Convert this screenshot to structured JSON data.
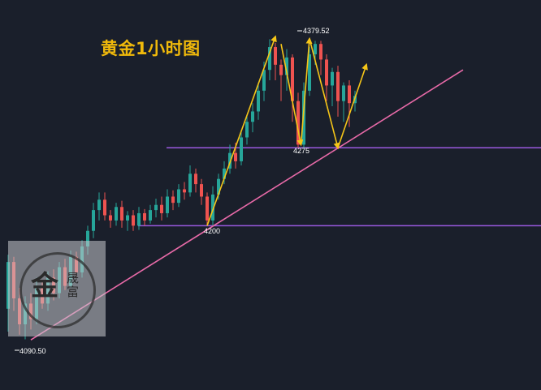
{
  "title": "黄金1小时图",
  "colors": {
    "background": "#1a1f2b",
    "bull": "#26a69a",
    "bear": "#ef5350",
    "arrow": "#f5c518",
    "trendline": "#e86aa8",
    "support": "#9a5ae0",
    "title": "#f0b90b"
  },
  "watermark": {
    "text_main": "金",
    "text_side": "晟富"
  },
  "chart_data": {
    "type": "candlestick",
    "title": "黄金1小时图",
    "ylim": [
      4080,
      4390
    ],
    "price_labels": {
      "high": "4379.52",
      "low": "4090.50",
      "support_upper": "4275",
      "support_lower": "4200"
    },
    "support_levels": [
      4275,
      4200
    ],
    "candles": [
      [
        4120,
        4165,
        4098,
        4172
      ],
      [
        4165,
        4130,
        4118,
        4170
      ],
      [
        4130,
        4105,
        4095,
        4140
      ],
      [
        4105,
        4125,
        4090.5,
        4132
      ],
      [
        4125,
        4110,
        4100,
        4135
      ],
      [
        4110,
        4140,
        4105,
        4150
      ],
      [
        4140,
        4125,
        4120,
        4148
      ],
      [
        4125,
        4150,
        4118,
        4156
      ],
      [
        4150,
        4135,
        4128,
        4158
      ],
      [
        4135,
        4160,
        4130,
        4165
      ],
      [
        4160,
        4142,
        4138,
        4168
      ],
      [
        4142,
        4170,
        4140,
        4176
      ],
      [
        4170,
        4155,
        4150,
        4175
      ],
      [
        4155,
        4180,
        4150,
        4186
      ],
      [
        4180,
        4195,
        4172,
        4200
      ],
      [
        4195,
        4215,
        4188,
        4222
      ],
      [
        4215,
        4225,
        4205,
        4232
      ],
      [
        4225,
        4210,
        4205,
        4232
      ],
      [
        4210,
        4205,
        4198,
        4215
      ],
      [
        4205,
        4218,
        4200,
        4222
      ],
      [
        4218,
        4205,
        4198,
        4224
      ],
      [
        4205,
        4210,
        4195,
        4214
      ],
      [
        4210,
        4200,
        4195,
        4215
      ],
      [
        4200,
        4212,
        4196,
        4218
      ],
      [
        4212,
        4205,
        4200,
        4216
      ],
      [
        4205,
        4215,
        4202,
        4220
      ],
      [
        4215,
        4220,
        4208,
        4226
      ],
      [
        4220,
        4212,
        4205,
        4228
      ],
      [
        4212,
        4228,
        4208,
        4235
      ],
      [
        4228,
        4222,
        4215,
        4234
      ],
      [
        4222,
        4235,
        4218,
        4240
      ],
      [
        4235,
        4232,
        4225,
        4242
      ],
      [
        4232,
        4250,
        4228,
        4258
      ],
      [
        4250,
        4240,
        4232,
        4255
      ],
      [
        4240,
        4228,
        4220,
        4245
      ],
      [
        4228,
        4205,
        4200,
        4232
      ],
      [
        4205,
        4230,
        4200,
        4238
      ],
      [
        4230,
        4245,
        4225,
        4250
      ],
      [
        4245,
        4255,
        4240,
        4262
      ],
      [
        4255,
        4270,
        4250,
        4278
      ],
      [
        4270,
        4262,
        4255,
        4280
      ],
      [
        4262,
        4285,
        4258,
        4292
      ],
      [
        4285,
        4300,
        4278,
        4306
      ],
      [
        4300,
        4310,
        4290,
        4318
      ],
      [
        4310,
        4330,
        4302,
        4338
      ],
      [
        4330,
        4350,
        4320,
        4358
      ],
      [
        4350,
        4372,
        4340,
        4379.52
      ],
      [
        4372,
        4355,
        4340,
        4376
      ],
      [
        4355,
        4345,
        4320,
        4360
      ],
      [
        4345,
        4362,
        4330,
        4370
      ],
      [
        4362,
        4320,
        4300,
        4365
      ],
      [
        4320,
        4278,
        4275,
        4328
      ],
      [
        4278,
        4330,
        4275,
        4338
      ],
      [
        4330,
        4365,
        4325,
        4372
      ],
      [
        4365,
        4375,
        4355,
        4378
      ],
      [
        4375,
        4360,
        4345,
        4378
      ],
      [
        4360,
        4335,
        4320,
        4365
      ],
      [
        4335,
        4348,
        4315,
        4352
      ],
      [
        4348,
        4320,
        4305,
        4354
      ],
      [
        4320,
        4335,
        4300,
        4338
      ],
      [
        4335,
        4318,
        4295,
        4340
      ],
      [
        4318,
        4325,
        4310,
        4330
      ]
    ],
    "arrows": [
      {
        "from": [
          35,
          4200
        ],
        "to": [
          47,
          4382
        ]
      },
      {
        "from": [
          48,
          4375
        ],
        "to": [
          51.5,
          4278
        ]
      },
      {
        "from": [
          51.5,
          4278
        ],
        "to": [
          53,
          4380
        ]
      },
      {
        "from": [
          53,
          4380
        ],
        "to": [
          58,
          4275
        ]
      },
      {
        "from": [
          58,
          4275
        ],
        "to": [
          63,
          4355
        ]
      }
    ],
    "trendline": {
      "from": [
        4,
        4090
      ],
      "to": [
        80,
        4350
      ]
    }
  }
}
